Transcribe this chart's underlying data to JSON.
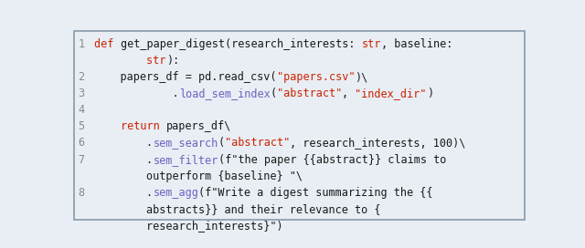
{
  "background_color": "#e8eef4",
  "border_color": "#8899aa",
  "line_number_color": "#888888",
  "font_size": 8.5,
  "lines": [
    {
      "num": "1",
      "tokens": [
        {
          "text": "def ",
          "color": "#cc2200"
        },
        {
          "text": "get_paper_digest(research_interests: ",
          "color": "#1a1a1a"
        },
        {
          "text": "str",
          "color": "#cc2200"
        },
        {
          "text": ", baseline:",
          "color": "#1a1a1a"
        }
      ]
    },
    {
      "num": "",
      "tokens": [
        {
          "text": "        str",
          "color": "#cc2200"
        },
        {
          "text": "):",
          "color": "#1a1a1a"
        }
      ]
    },
    {
      "num": "2",
      "tokens": [
        {
          "text": "    papers_df = pd.read_csv(",
          "color": "#1a1a1a"
        },
        {
          "text": "\"papers.csv\"",
          "color": "#cc2200"
        },
        {
          "text": ")\\",
          "color": "#1a1a1a"
        }
      ]
    },
    {
      "num": "3",
      "tokens": [
        {
          "text": "            .",
          "color": "#1a1a1a"
        },
        {
          "text": "load_sem_index",
          "color": "#7060c0"
        },
        {
          "text": "(",
          "color": "#1a1a1a"
        },
        {
          "text": "\"abstract\"",
          "color": "#cc2200"
        },
        {
          "text": ", ",
          "color": "#1a1a1a"
        },
        {
          "text": "\"index_dir\"",
          "color": "#cc2200"
        },
        {
          "text": ")",
          "color": "#1a1a1a"
        }
      ]
    },
    {
      "num": "4",
      "tokens": []
    },
    {
      "num": "5",
      "tokens": [
        {
          "text": "    ",
          "color": "#1a1a1a"
        },
        {
          "text": "return ",
          "color": "#cc2200"
        },
        {
          "text": "papers_df\\",
          "color": "#1a1a1a"
        }
      ]
    },
    {
      "num": "6",
      "tokens": [
        {
          "text": "        .",
          "color": "#1a1a1a"
        },
        {
          "text": "sem_search",
          "color": "#7060c0"
        },
        {
          "text": "(",
          "color": "#1a1a1a"
        },
        {
          "text": "\"abstract\"",
          "color": "#cc2200"
        },
        {
          "text": ", research_interests, 100)\\",
          "color": "#1a1a1a"
        }
      ]
    },
    {
      "num": "7",
      "tokens": [
        {
          "text": "        .",
          "color": "#1a1a1a"
        },
        {
          "text": "sem_filter",
          "color": "#7060c0"
        },
        {
          "text": "(f\"the paper {{abstract}} claims to",
          "color": "#1a1a1a"
        }
      ]
    },
    {
      "num": "",
      "tokens": [
        {
          "text": "        outperform {baseline} \"\\",
          "color": "#1a1a1a"
        }
      ]
    },
    {
      "num": "8",
      "tokens": [
        {
          "text": "        .",
          "color": "#1a1a1a"
        },
        {
          "text": "sem_agg",
          "color": "#7060c0"
        },
        {
          "text": "(f\"Write a digest summarizing the {{",
          "color": "#1a1a1a"
        }
      ]
    },
    {
      "num": "",
      "tokens": [
        {
          "text": "        abstracts}} and their relevance to {",
          "color": "#1a1a1a"
        }
      ]
    },
    {
      "num": "",
      "tokens": [
        {
          "text": "        research_interests}\")",
          "color": "#1a1a1a"
        }
      ]
    }
  ]
}
